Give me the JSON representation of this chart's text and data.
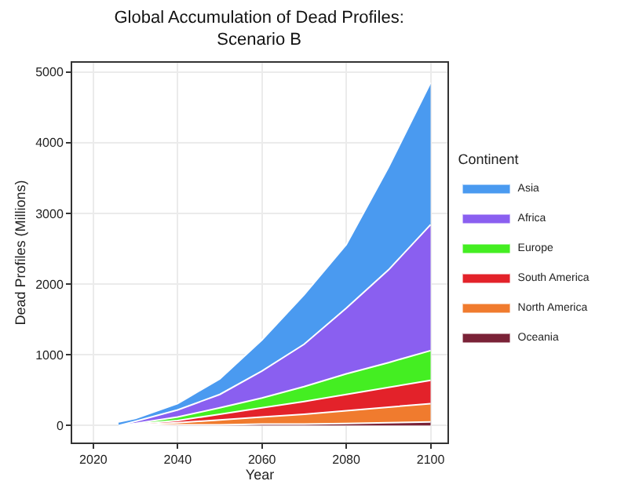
{
  "chart_data": {
    "type": "area",
    "stacked": true,
    "title": "Global Accumulation of Dead Profiles:\nScenario B",
    "xlabel": "Year",
    "ylabel": "Dead Profiles (Millions)",
    "legend_title": "Continent",
    "legend": "right",
    "grid": true,
    "x": [
      2026,
      2030,
      2040,
      2050,
      2060,
      2070,
      2080,
      2090,
      2100
    ],
    "xlim": [
      2015,
      2104
    ],
    "xticks": [
      2020,
      2040,
      2060,
      2080,
      2100
    ],
    "ylim": [
      -240,
      5130
    ],
    "yticks": [
      0,
      1000,
      2000,
      3000,
      4000,
      5000
    ],
    "series": [
      {
        "name": "Oceania",
        "color": "#7a2237",
        "values": [
          0,
          0,
          10,
          10,
          20,
          20,
          30,
          40,
          50
        ]
      },
      {
        "name": "North America",
        "color": "#f07b2e",
        "values": [
          0,
          10,
          30,
          70,
          100,
          140,
          180,
          220,
          260
        ]
      },
      {
        "name": "South America",
        "color": "#e3222a",
        "values": [
          0,
          10,
          30,
          80,
          130,
          180,
          230,
          280,
          330
        ]
      },
      {
        "name": "Europe",
        "color": "#44ee22",
        "values": [
          0,
          10,
          50,
          90,
          140,
          210,
          290,
          350,
          420
        ]
      },
      {
        "name": "Africa",
        "color": "#8a5ff0",
        "values": [
          0,
          30,
          100,
          190,
          380,
          600,
          930,
          1310,
          1780
        ]
      },
      {
        "name": "Asia",
        "color": "#4a9af0",
        "values": [
          50,
          40,
          90,
          220,
          440,
          700,
          900,
          1450,
          2010
        ]
      }
    ]
  }
}
